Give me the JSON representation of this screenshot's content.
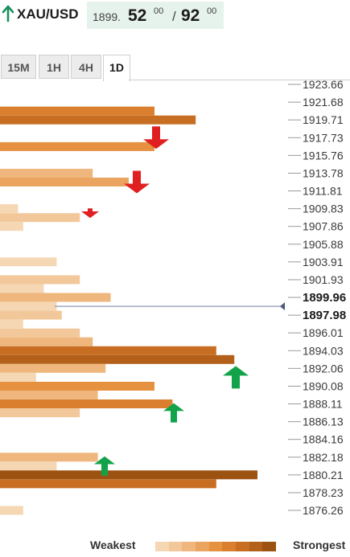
{
  "header": {
    "symbol": "XAU/USD",
    "bid_prefix": "1899.",
    "bid_big": "52",
    "bid_sup": "00",
    "slash": "/",
    "ask_big": "92",
    "ask_sup": "00",
    "trend_icon": "up-arrow-icon",
    "trend_color": "#1a8f5e"
  },
  "tabs": [
    {
      "label": "15M",
      "active": false
    },
    {
      "label": "1H",
      "active": false
    },
    {
      "label": "4H",
      "active": false
    },
    {
      "label": "1D",
      "active": true
    }
  ],
  "chart_data": {
    "type": "bar",
    "orientation": "horizontal",
    "price_levels": [
      "1923.66",
      "1921.68",
      "1919.71",
      "1917.73",
      "1915.76",
      "1913.78",
      "1911.81",
      "1909.83",
      "1907.86",
      "1905.88",
      "1903.91",
      "1901.93",
      "1899.96",
      "1897.98",
      "1896.01",
      "1894.03",
      "1892.06",
      "1890.08",
      "1888.11",
      "1886.13",
      "1884.16",
      "1882.18",
      "1880.21",
      "1878.23",
      "1876.26"
    ],
    "current_price_levels": [
      "1899.96",
      "1897.98"
    ],
    "strength_scale": [
      "#f5d7b4",
      "#f2c89a",
      "#efb77d",
      "#eba45f",
      "#e6913f",
      "#d97f2e",
      "#c86e22",
      "#b2601a",
      "#9c5211"
    ],
    "bars": [
      {
        "price": 1920.7,
        "value": 0.6,
        "strength": 5
      },
      {
        "price": 1919.71,
        "value": 0.76,
        "strength": 6
      },
      {
        "price": 1916.74,
        "value": 0.6,
        "strength": 4
      },
      {
        "price": 1913.78,
        "value": 0.36,
        "strength": 2
      },
      {
        "price": 1912.79,
        "value": 0.5,
        "strength": 3
      },
      {
        "price": 1909.83,
        "value": 0.07,
        "strength": 0
      },
      {
        "price": 1908.84,
        "value": 0.31,
        "strength": 1
      },
      {
        "price": 1907.86,
        "value": 0.09,
        "strength": 0
      },
      {
        "price": 1903.91,
        "value": 0.22,
        "strength": 0
      },
      {
        "price": 1901.93,
        "value": 0.31,
        "strength": 1
      },
      {
        "price": 1900.94,
        "value": 0.17,
        "strength": 0
      },
      {
        "price": 1899.96,
        "value": 0.43,
        "strength": 2
      },
      {
        "price": 1898.97,
        "value": 0.22,
        "strength": 0
      },
      {
        "price": 1897.98,
        "value": 0.24,
        "strength": 1
      },
      {
        "price": 1897.0,
        "value": 0.09,
        "strength": 0
      },
      {
        "price": 1896.01,
        "value": 0.31,
        "strength": 1
      },
      {
        "price": 1895.02,
        "value": 0.36,
        "strength": 2
      },
      {
        "price": 1894.03,
        "value": 0.84,
        "strength": 6
      },
      {
        "price": 1893.05,
        "value": 0.91,
        "strength": 7
      },
      {
        "price": 1892.06,
        "value": 0.41,
        "strength": 2
      },
      {
        "price": 1891.07,
        "value": 0.14,
        "strength": 0
      },
      {
        "price": 1890.08,
        "value": 0.6,
        "strength": 4
      },
      {
        "price": 1889.1,
        "value": 0.38,
        "strength": 2
      },
      {
        "price": 1888.11,
        "value": 0.67,
        "strength": 5
      },
      {
        "price": 1887.12,
        "value": 0.31,
        "strength": 1
      },
      {
        "price": 1882.18,
        "value": 0.38,
        "strength": 2
      },
      {
        "price": 1881.2,
        "value": 0.22,
        "strength": 0
      },
      {
        "price": 1880.21,
        "value": 1.0,
        "strength": 8
      },
      {
        "price": 1879.22,
        "value": 0.84,
        "strength": 6
      },
      {
        "price": 1876.26,
        "value": 0.09,
        "strength": 0
      }
    ],
    "arrows": [
      {
        "direction": "down",
        "price": 1917.73,
        "size": "large",
        "color": "#e02020"
      },
      {
        "direction": "down",
        "price": 1912.79,
        "size": "large",
        "color": "#e02020"
      },
      {
        "direction": "down",
        "price": 1909.33,
        "size": "small",
        "color": "#e02020"
      },
      {
        "direction": "up",
        "price": 1891.07,
        "size": "large",
        "color": "#12a34a"
      },
      {
        "direction": "up",
        "price": 1887.12,
        "size": "medium",
        "color": "#12a34a"
      },
      {
        "direction": "up",
        "price": 1881.2,
        "size": "medium",
        "color": "#12a34a"
      }
    ]
  },
  "legend": {
    "weakest_label": "Weakest",
    "strongest_label": "Strongest"
  }
}
